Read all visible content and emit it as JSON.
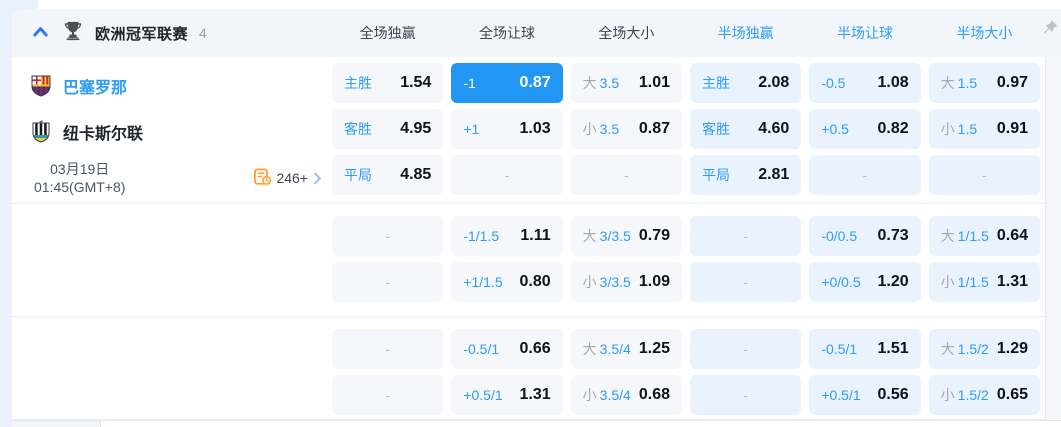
{
  "header": {
    "league_name": "欧洲冠军联赛",
    "match_count": "4",
    "columns": [
      {
        "label": "全场独赢",
        "period": "full"
      },
      {
        "label": "全场让球",
        "period": "full"
      },
      {
        "label": "全场大小",
        "period": "full"
      },
      {
        "label": "半场独赢",
        "period": "half"
      },
      {
        "label": "半场让球",
        "period": "half"
      },
      {
        "label": "半场大小",
        "period": "half"
      }
    ],
    "icons": {
      "collapse": "chevron-up-icon",
      "league": "trophy-icon",
      "pin": "pushpin-icon"
    }
  },
  "match": {
    "home_team": "巴塞罗那",
    "away_team": "纽卡斯尔联",
    "date": "03月19日",
    "time": "01:45(GMT+8)",
    "more_markets": "246+",
    "more_markets_icon": "markets-list-clock-icon",
    "more_markets_chevron": "chevron-right-icon"
  },
  "colors": {
    "accent_blue": "#2196f3",
    "line_text_blue": "#2e9cf5",
    "selected_cell_bg": "#2196f3",
    "fulltime_cell_bg": "#f5f7fa",
    "halftime_cell_bg": "#eaf3fd",
    "odds_text": "#0f1216",
    "muted_gray": "#a2a8b3",
    "markets_icon_orange": "#ff9d2e",
    "page_bg": "#e9f1fd"
  },
  "odds": {
    "empty_text": "-",
    "groups": [
      {
        "rows": [
          [
            {
              "line": "主胜",
              "value": "1.54"
            },
            {
              "line": "-1",
              "value": "0.87",
              "selected": true
            },
            {
              "prefix": "大",
              "line": "3.5",
              "value": "1.01"
            },
            {
              "line": "主胜",
              "value": "2.08"
            },
            {
              "line": "-0.5",
              "value": "1.08"
            },
            {
              "prefix": "大",
              "line": "1.5",
              "value": "0.97"
            }
          ],
          [
            {
              "line": "客胜",
              "value": "4.95"
            },
            {
              "line": "+1",
              "value": "1.03"
            },
            {
              "prefix": "小",
              "line": "3.5",
              "value": "0.87"
            },
            {
              "line": "客胜",
              "value": "4.60"
            },
            {
              "line": "+0.5",
              "value": "0.82"
            },
            {
              "prefix": "小",
              "line": "1.5",
              "value": "0.91"
            }
          ],
          [
            {
              "line": "平局",
              "value": "4.85"
            },
            null,
            null,
            {
              "line": "平局",
              "value": "2.81"
            },
            null,
            null
          ]
        ]
      },
      {
        "rows": [
          [
            null,
            {
              "line": "-1/1.5",
              "value": "1.11"
            },
            {
              "prefix": "大",
              "line": "3/3.5",
              "value": "0.79"
            },
            null,
            {
              "line": "-0/0.5",
              "value": "0.73"
            },
            {
              "prefix": "大",
              "line": "1/1.5",
              "value": "0.64"
            }
          ],
          [
            null,
            {
              "line": "+1/1.5",
              "value": "0.80"
            },
            {
              "prefix": "小",
              "line": "3/3.5",
              "value": "1.09"
            },
            null,
            {
              "line": "+0/0.5",
              "value": "1.20"
            },
            {
              "prefix": "小",
              "line": "1/1.5",
              "value": "1.31"
            }
          ]
        ]
      },
      {
        "rows": [
          [
            null,
            {
              "line": "-0.5/1",
              "value": "0.66"
            },
            {
              "prefix": "大",
              "line": "3.5/4",
              "value": "1.25"
            },
            null,
            {
              "line": "-0.5/1",
              "value": "1.51"
            },
            {
              "prefix": "大",
              "line": "1.5/2",
              "value": "1.29"
            }
          ],
          [
            null,
            {
              "line": "+0.5/1",
              "value": "1.31"
            },
            {
              "prefix": "小",
              "line": "3.5/4",
              "value": "0.68"
            },
            null,
            {
              "line": "+0.5/1",
              "value": "0.56"
            },
            {
              "prefix": "小",
              "line": "1.5/2",
              "value": "0.65"
            }
          ]
        ]
      }
    ]
  }
}
